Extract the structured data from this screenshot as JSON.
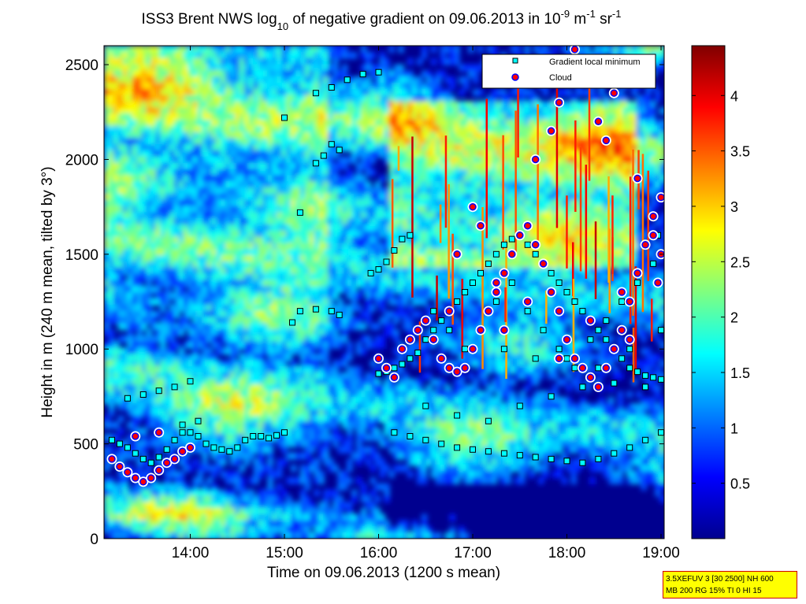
{
  "chart_data": {
    "type": "heatmap",
    "title": {
      "prefix": "ISS3 Brent NWS log",
      "log_base": "10",
      "middle": " of negative gradient on 09.06.2013 in 10",
      "exp1": "-9",
      "unit1": " m",
      "exp2": "-1",
      "unit2": " sr",
      "exp3": "-1"
    },
    "xlabel": "Time on 09.06.2013 (1200 s mean)",
    "ylabel": "Height in m (240 m mean, tilted by 3°)",
    "xlim": [
      "13:05",
      "19:02"
    ],
    "ylim": [
      0,
      2600
    ],
    "x_ticks": [
      "14:00",
      "15:00",
      "16:00",
      "17:00",
      "18:00",
      "19:00"
    ],
    "y_ticks": [
      0,
      500,
      1000,
      1500,
      2000,
      2500
    ],
    "colorbar": {
      "colormap": "jet",
      "range": [
        0,
        4.45
      ],
      "ticks": [
        0.5,
        1,
        1.5,
        2,
        2.5,
        3,
        3.5,
        4
      ],
      "tick_labels": [
        "0.5",
        "1",
        "1.5",
        "2",
        "2.5",
        "3",
        "3.5",
        "4"
      ]
    },
    "legend": {
      "placement": "top-right",
      "entries": [
        {
          "label": "Gradient local minimum",
          "marker": "square",
          "color": "#00ffff"
        },
        {
          "label": "Cloud",
          "marker": "circle",
          "color": "#ff0000"
        }
      ]
    },
    "series": [
      {
        "name": "Gradient local minimum",
        "points": [
          [
            "13:10",
            520
          ],
          [
            "13:15",
            500
          ],
          [
            "13:20",
            480
          ],
          [
            "13:25",
            450
          ],
          [
            "13:30",
            420
          ],
          [
            "13:35",
            400
          ],
          [
            "13:40",
            430
          ],
          [
            "13:45",
            470
          ],
          [
            "13:50",
            520
          ],
          [
            "13:55",
            560
          ],
          [
            "14:00",
            560
          ],
          [
            "14:05",
            540
          ],
          [
            "14:10",
            500
          ],
          [
            "14:15",
            480
          ],
          [
            "14:20",
            470
          ],
          [
            "14:25",
            460
          ],
          [
            "14:30",
            480
          ],
          [
            "14:35",
            520
          ],
          [
            "14:40",
            540
          ],
          [
            "14:45",
            540
          ],
          [
            "14:50",
            530
          ],
          [
            "14:55",
            545
          ],
          [
            "15:00",
            560
          ],
          [
            "13:20",
            740
          ],
          [
            "13:30",
            760
          ],
          [
            "13:40",
            780
          ],
          [
            "13:50",
            800
          ],
          [
            "14:00",
            830
          ],
          [
            "13:55",
            600
          ],
          [
            "14:05",
            620
          ],
          [
            "15:05",
            1140
          ],
          [
            "15:10",
            1200
          ],
          [
            "15:20",
            1210
          ],
          [
            "15:30",
            1200
          ],
          [
            "15:35",
            1180
          ],
          [
            "15:10",
            1720
          ],
          [
            "15:20",
            1980
          ],
          [
            "15:25",
            2020
          ],
          [
            "15:30",
            2080
          ],
          [
            "15:35",
            2050
          ],
          [
            "15:20",
            2350
          ],
          [
            "15:30",
            2380
          ],
          [
            "15:40",
            2420
          ],
          [
            "15:50",
            2450
          ],
          [
            "16:00",
            2460
          ],
          [
            "15:00",
            2220
          ],
          [
            "15:55",
            1400
          ],
          [
            "16:00",
            1420
          ],
          [
            "16:05",
            1460
          ],
          [
            "16:10",
            1520
          ],
          [
            "16:15",
            1580
          ],
          [
            "16:20",
            1600
          ],
          [
            "16:00",
            870
          ],
          [
            "16:05",
            880
          ],
          [
            "16:10",
            900
          ],
          [
            "16:15",
            920
          ],
          [
            "16:20",
            950
          ],
          [
            "16:25",
            980
          ],
          [
            "16:30",
            1050
          ],
          [
            "16:35",
            1100
          ],
          [
            "16:40",
            1150
          ],
          [
            "16:45",
            1200
          ],
          [
            "16:50",
            1250
          ],
          [
            "16:55",
            1300
          ],
          [
            "17:00",
            1350
          ],
          [
            "17:05",
            1400
          ],
          [
            "17:10",
            1450
          ],
          [
            "17:15",
            1500
          ],
          [
            "17:20",
            1550
          ],
          [
            "17:25",
            1580
          ],
          [
            "17:30",
            1600
          ],
          [
            "17:35",
            1550
          ],
          [
            "17:40",
            1500
          ],
          [
            "17:45",
            1450
          ],
          [
            "17:50",
            1400
          ],
          [
            "17:55",
            1350
          ],
          [
            "18:00",
            1300
          ],
          [
            "18:05",
            1250
          ],
          [
            "18:10",
            1200
          ],
          [
            "18:15",
            1150
          ],
          [
            "18:20",
            1100
          ],
          [
            "18:25",
            1050
          ],
          [
            "18:30",
            1000
          ],
          [
            "18:35",
            950
          ],
          [
            "18:40",
            900
          ],
          [
            "18:45",
            880
          ],
          [
            "18:50",
            860
          ],
          [
            "18:55",
            850
          ],
          [
            "19:00",
            840
          ],
          [
            "16:10",
            560
          ],
          [
            "16:20",
            540
          ],
          [
            "16:30",
            520
          ],
          [
            "16:40",
            500
          ],
          [
            "16:50",
            480
          ],
          [
            "17:00",
            470
          ],
          [
            "17:10",
            460
          ],
          [
            "17:20",
            450
          ],
          [
            "17:30",
            440
          ],
          [
            "17:40",
            430
          ],
          [
            "17:50",
            420
          ],
          [
            "18:00",
            410
          ],
          [
            "18:10",
            400
          ],
          [
            "18:20",
            420
          ],
          [
            "18:30",
            450
          ],
          [
            "18:40",
            480
          ],
          [
            "18:50",
            520
          ],
          [
            "19:00",
            560
          ],
          [
            "16:35",
            1200
          ],
          [
            "16:45",
            1100
          ],
          [
            "16:55",
            1000
          ],
          [
            "17:05",
            1100
          ],
          [
            "17:15",
            1250
          ],
          [
            "17:25",
            1350
          ],
          [
            "17:35",
            1200
          ],
          [
            "17:45",
            1100
          ],
          [
            "17:55",
            1000
          ],
          [
            "18:05",
            900
          ],
          [
            "18:15",
            1050
          ],
          [
            "18:25",
            1150
          ],
          [
            "18:35",
            1250
          ],
          [
            "18:45",
            1350
          ],
          [
            "18:55",
            1450
          ],
          [
            "18:58",
            1600
          ],
          [
            "16:30",
            700
          ],
          [
            "16:50",
            650
          ],
          [
            "17:10",
            620
          ],
          [
            "17:30",
            700
          ],
          [
            "17:50",
            750
          ],
          [
            "18:10",
            800
          ],
          [
            "18:30",
            820
          ],
          [
            "18:50",
            800
          ],
          [
            "17:20",
            1000
          ],
          [
            "17:40",
            950
          ],
          [
            "18:00",
            950
          ],
          [
            "18:20",
            900
          ],
          [
            "18:40",
            1000
          ],
          [
            "19:00",
            1100
          ]
        ]
      },
      {
        "name": "Cloud",
        "points": [
          [
            "13:10",
            420
          ],
          [
            "13:15",
            380
          ],
          [
            "13:20",
            350
          ],
          [
            "13:25",
            320
          ],
          [
            "13:30",
            300
          ],
          [
            "13:35",
            320
          ],
          [
            "13:40",
            360
          ],
          [
            "13:45",
            400
          ],
          [
            "13:50",
            420
          ],
          [
            "13:55",
            460
          ],
          [
            "14:00",
            480
          ],
          [
            "13:25",
            540
          ],
          [
            "13:40",
            560
          ],
          [
            "16:00",
            950
          ],
          [
            "16:05",
            900
          ],
          [
            "16:10",
            850
          ],
          [
            "16:15",
            1000
          ],
          [
            "16:20",
            1050
          ],
          [
            "16:25",
            1100
          ],
          [
            "16:30",
            1150
          ],
          [
            "16:35",
            1050
          ],
          [
            "16:40",
            950
          ],
          [
            "16:45",
            900
          ],
          [
            "16:50",
            880
          ],
          [
            "16:55",
            900
          ],
          [
            "17:00",
            1000
          ],
          [
            "17:05",
            1100
          ],
          [
            "17:10",
            1200
          ],
          [
            "17:15",
            1300
          ],
          [
            "17:20",
            1400
          ],
          [
            "17:25",
            1500
          ],
          [
            "17:30",
            1600
          ],
          [
            "17:35",
            1650
          ],
          [
            "17:40",
            1550
          ],
          [
            "17:45",
            1450
          ],
          [
            "17:50",
            1300
          ],
          [
            "17:55",
            1200
          ],
          [
            "18:00",
            1050
          ],
          [
            "18:05",
            950
          ],
          [
            "18:10",
            900
          ],
          [
            "18:15",
            850
          ],
          [
            "18:20",
            800
          ],
          [
            "18:25",
            900
          ],
          [
            "18:30",
            1000
          ],
          [
            "18:35",
            1100
          ],
          [
            "18:40",
            1250
          ],
          [
            "18:45",
            1400
          ],
          [
            "18:50",
            1550
          ],
          [
            "18:55",
            1700
          ],
          [
            "19:00",
            1800
          ],
          [
            "17:00",
            1750
          ],
          [
            "17:05",
            1650
          ],
          [
            "17:40",
            2000
          ],
          [
            "17:50",
            2150
          ],
          [
            "17:55",
            2300
          ],
          [
            "18:00",
            2450
          ],
          [
            "18:05",
            2580
          ],
          [
            "18:20",
            2200
          ],
          [
            "18:25",
            2100
          ],
          [
            "18:30",
            2350
          ],
          [
            "18:45",
            1900
          ],
          [
            "18:55",
            1600
          ],
          [
            "19:00",
            1500
          ],
          [
            "16:50",
            1500
          ],
          [
            "17:15",
            1350
          ],
          [
            "17:35",
            1250
          ],
          [
            "18:15",
            1150
          ],
          [
            "18:40",
            1050
          ],
          [
            "16:45",
            1200
          ],
          [
            "17:20",
            1100
          ],
          [
            "17:55",
            950
          ],
          [
            "18:35",
            1300
          ],
          [
            "18:58",
            1350
          ]
        ]
      }
    ],
    "annotation": {
      "line1": "3.5XEFUV 3 [30 2500] NH 600",
      "line2": "MB 200 RG 15% TI 0 HI 15"
    }
  }
}
